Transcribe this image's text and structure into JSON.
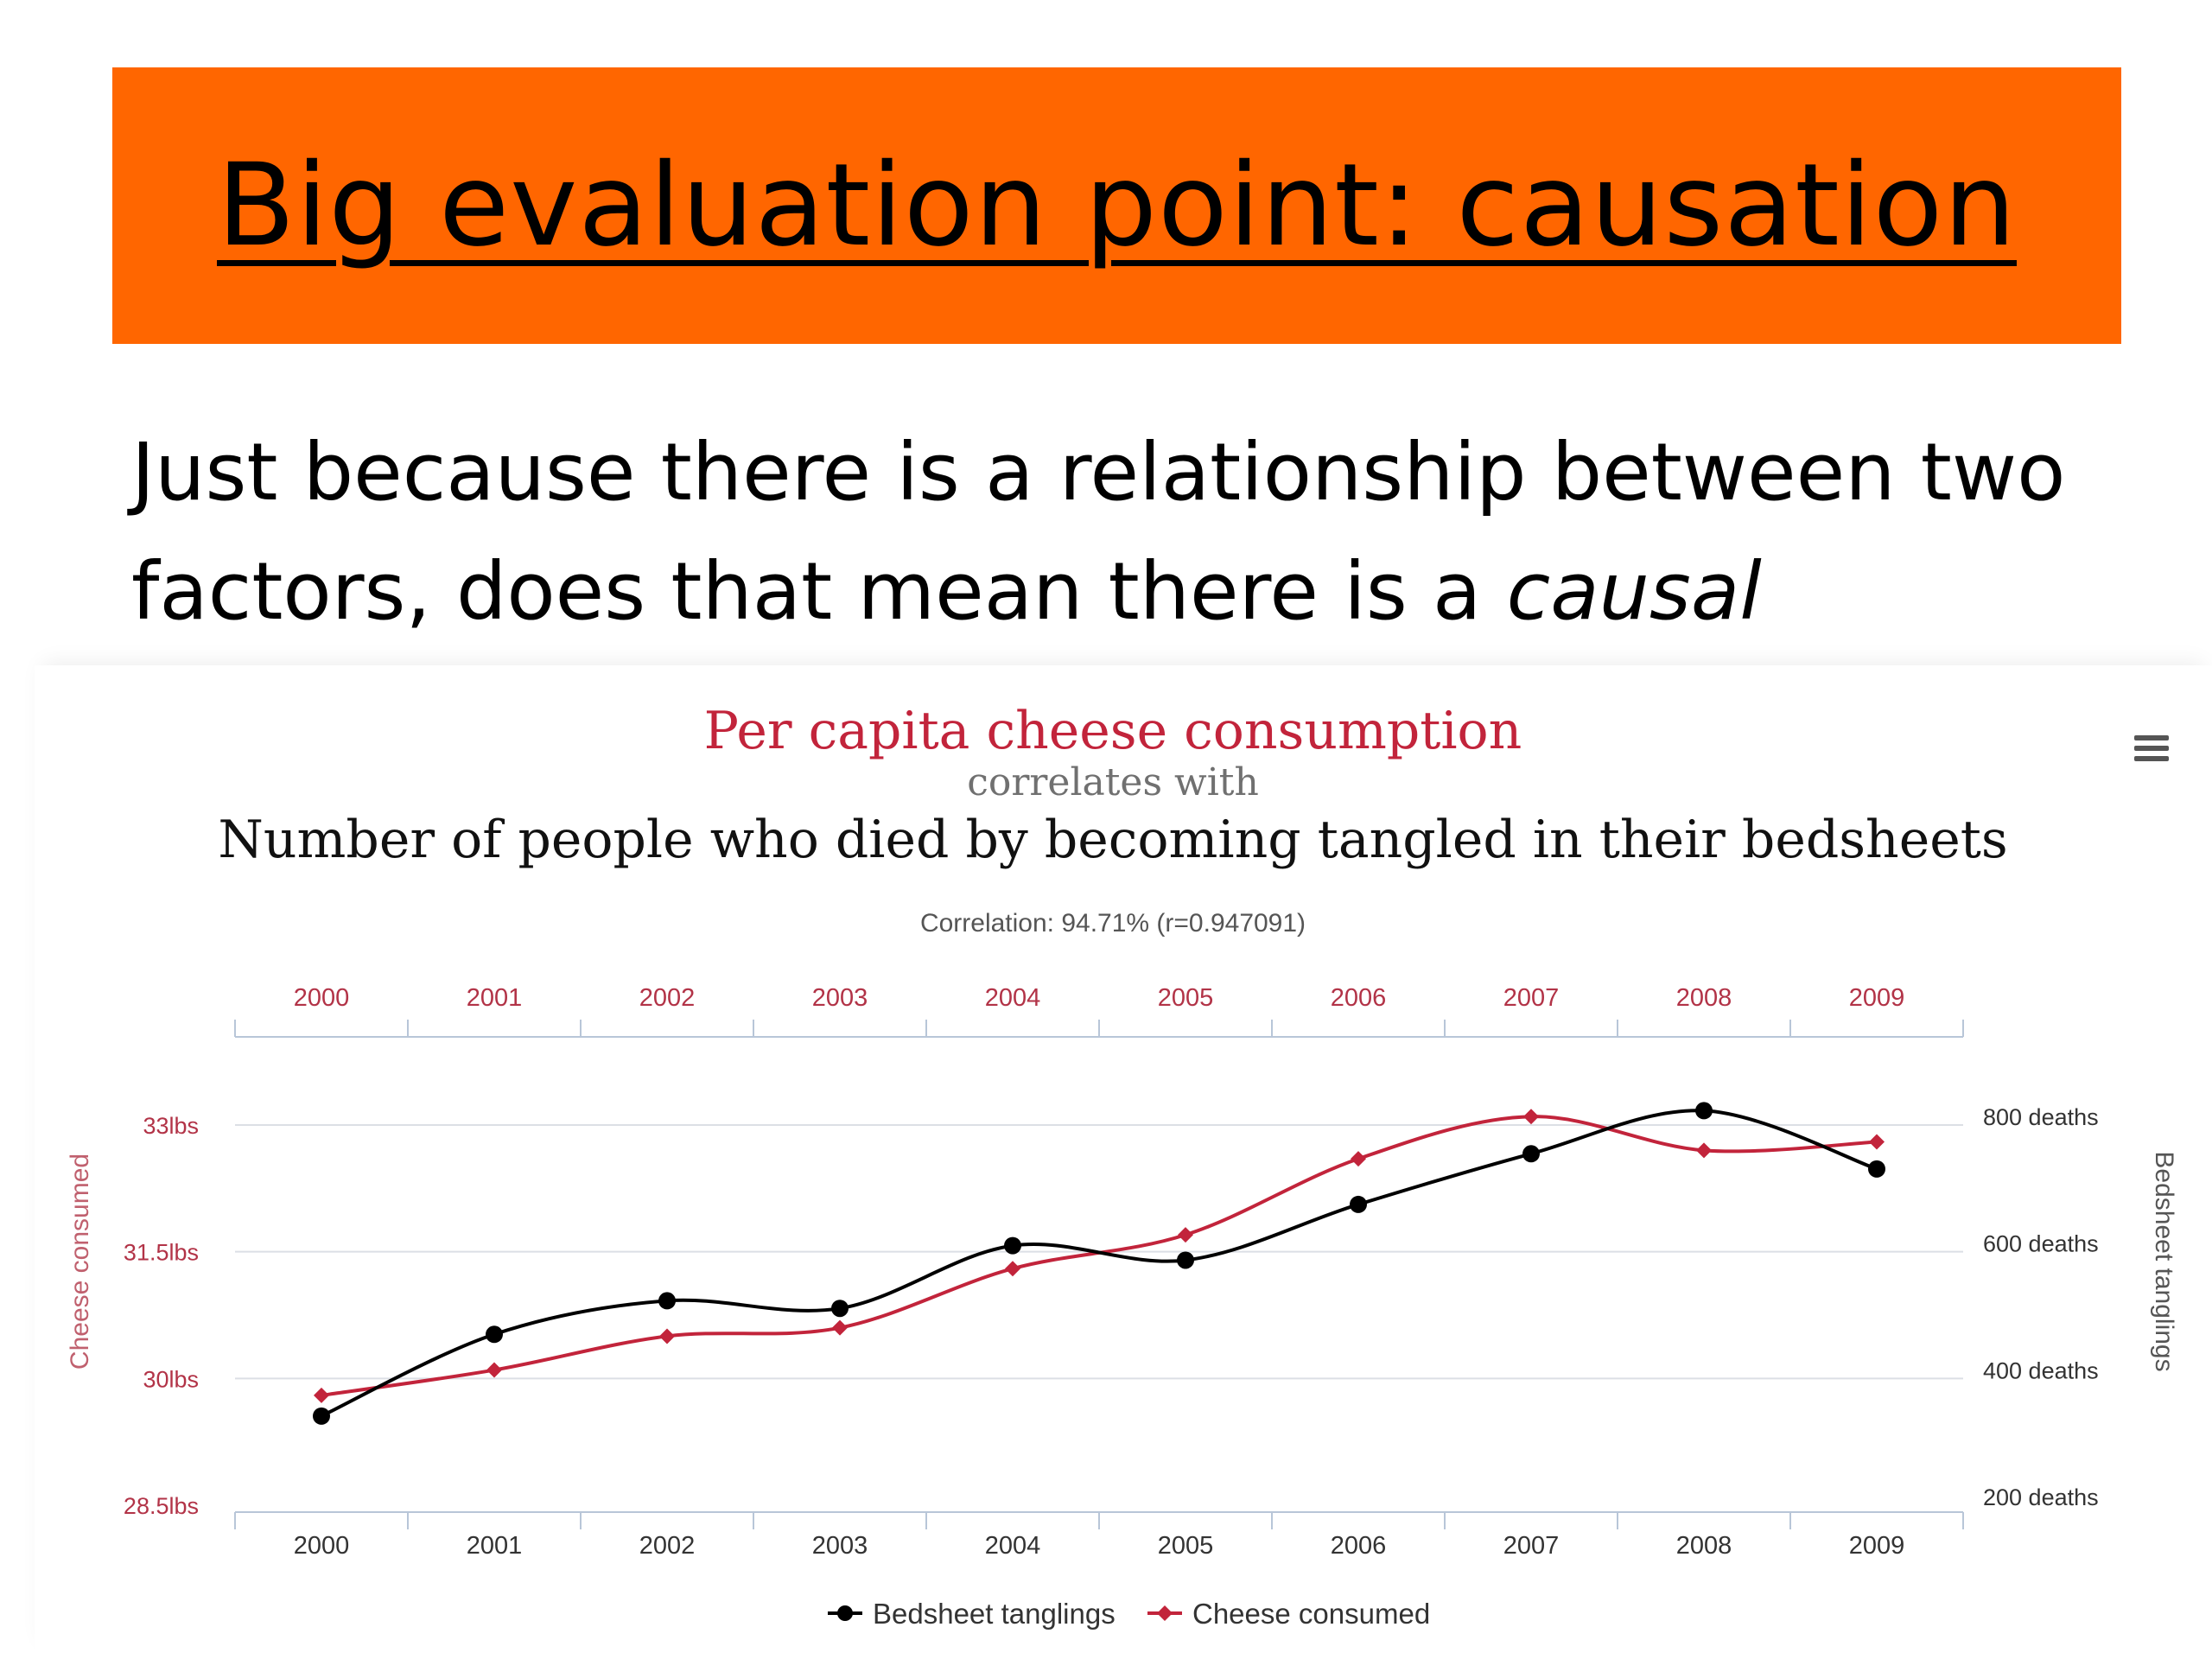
{
  "slide": {
    "title": "Big evaluation point: causation",
    "body_text": "Just because there is a relationship between two factors, does that mean there is a",
    "body_emphasis": "causal"
  },
  "colors": {
    "banner": "#ff6600",
    "cheese_series": "#c2243b",
    "bedsheet_series": "#000000"
  },
  "icons": {
    "menu": "hamburger-menu-icon"
  },
  "chart_data": {
    "type": "line",
    "title": "Per capita cheese consumption",
    "subtitle": "correlates with",
    "title2": "Number of people who died by becoming tangled in their bedsheets",
    "correlation": "Correlation: 94.71% (r=0.947091)",
    "x": [
      "2000",
      "2001",
      "2002",
      "2003",
      "2004",
      "2005",
      "2006",
      "2007",
      "2008",
      "2009"
    ],
    "series": [
      {
        "name": "Bedsheet tanglings",
        "axis": "right",
        "color": "#000000",
        "values": [
          327,
          456,
          509,
          497,
          596,
          573,
          661,
          741,
          809,
          717
        ]
      },
      {
        "name": "Cheese consumed",
        "axis": "left",
        "color": "#c2243b",
        "values": [
          29.8,
          30.1,
          30.5,
          30.6,
          31.3,
          31.7,
          32.6,
          33.1,
          32.7,
          32.8
        ]
      }
    ],
    "y_left": {
      "label": "Cheese consumed",
      "ticks": [
        "33lbs",
        "31.5lbs",
        "30lbs",
        "28.5lbs"
      ],
      "tick_values": [
        33,
        31.5,
        30,
        28.5
      ],
      "range": [
        28.5,
        33
      ]
    },
    "y_right": {
      "label": "Bedsheet tanglings",
      "ticks": [
        "800 deaths",
        "600 deaths",
        "400 deaths",
        "200 deaths"
      ],
      "tick_values": [
        800,
        600,
        400,
        200
      ],
      "range": [
        200,
        800
      ]
    },
    "grid": true,
    "legend_position": "bottom-center"
  }
}
